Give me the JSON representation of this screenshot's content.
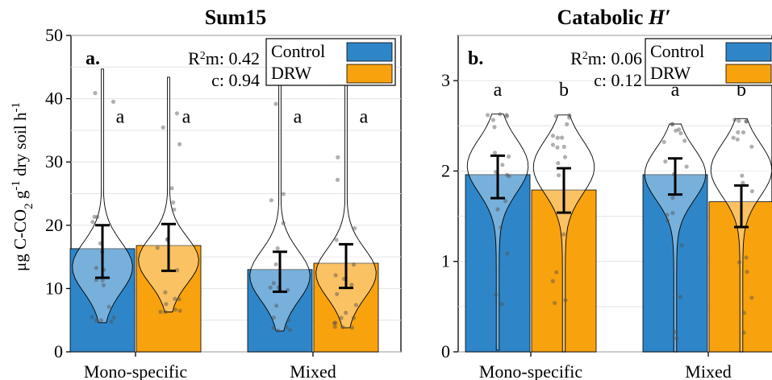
{
  "colors": {
    "control": "#2E86C8",
    "drw": "#F8A20E"
  },
  "ylabel": "μg C-CO2 g-1 dry soil h-1",
  "chart_data": [
    {
      "type": "bar",
      "title": "Sum15",
      "panel_letter": "a.",
      "categories": [
        "Mono-specific",
        "Mixed"
      ],
      "ylim": [
        0,
        50
      ],
      "yticks": [
        0,
        10,
        20,
        30,
        40,
        50
      ],
      "stats": {
        "r2m": "0.42",
        "c": "0.94"
      },
      "series": [
        {
          "name": "Control",
          "values": [
            16.3,
            13.0
          ],
          "err_low": [
            11.7,
            9.5
          ],
          "err_high": [
            20.0,
            15.8
          ],
          "violin_range": [
            [
              4.6,
              44.7
            ],
            [
              3.3,
              43.0
            ]
          ],
          "letters": [
            "a",
            "a"
          ]
        },
        {
          "name": "DRW",
          "values": [
            16.8,
            14.0
          ],
          "err_low": [
            12.8,
            10.1
          ],
          "err_high": [
            20.2,
            17.0
          ],
          "violin_range": [
            [
              6.3,
              43.4
            ],
            [
              3.8,
              43.0
            ]
          ],
          "letters": [
            "a",
            "a"
          ]
        }
      ]
    },
    {
      "type": "bar",
      "title": "Catabolic H′",
      "panel_letter": "b.",
      "categories": [
        "Mono-specific",
        "Mixed"
      ],
      "ylim": [
        0,
        3.5
      ],
      "yticks": [
        0,
        1,
        2,
        3
      ],
      "stats": {
        "r2m": "0.06",
        "c": "0.12"
      },
      "series": [
        {
          "name": "Control",
          "values": [
            1.96,
            1.96
          ],
          "err_low": [
            1.7,
            1.74
          ],
          "err_high": [
            2.17,
            2.14
          ],
          "violin_range": [
            [
              0.02,
              2.63
            ],
            [
              0.0,
              2.52
            ]
          ],
          "letters": [
            "a",
            "a"
          ]
        },
        {
          "name": "DRW",
          "values": [
            1.79,
            1.66
          ],
          "err_low": [
            1.54,
            1.38
          ],
          "err_high": [
            2.03,
            1.84
          ],
          "violin_range": [
            [
              0.0,
              2.62
            ],
            [
              0.0,
              2.58
            ]
          ],
          "letters": [
            "b",
            "b"
          ]
        }
      ]
    }
  ]
}
